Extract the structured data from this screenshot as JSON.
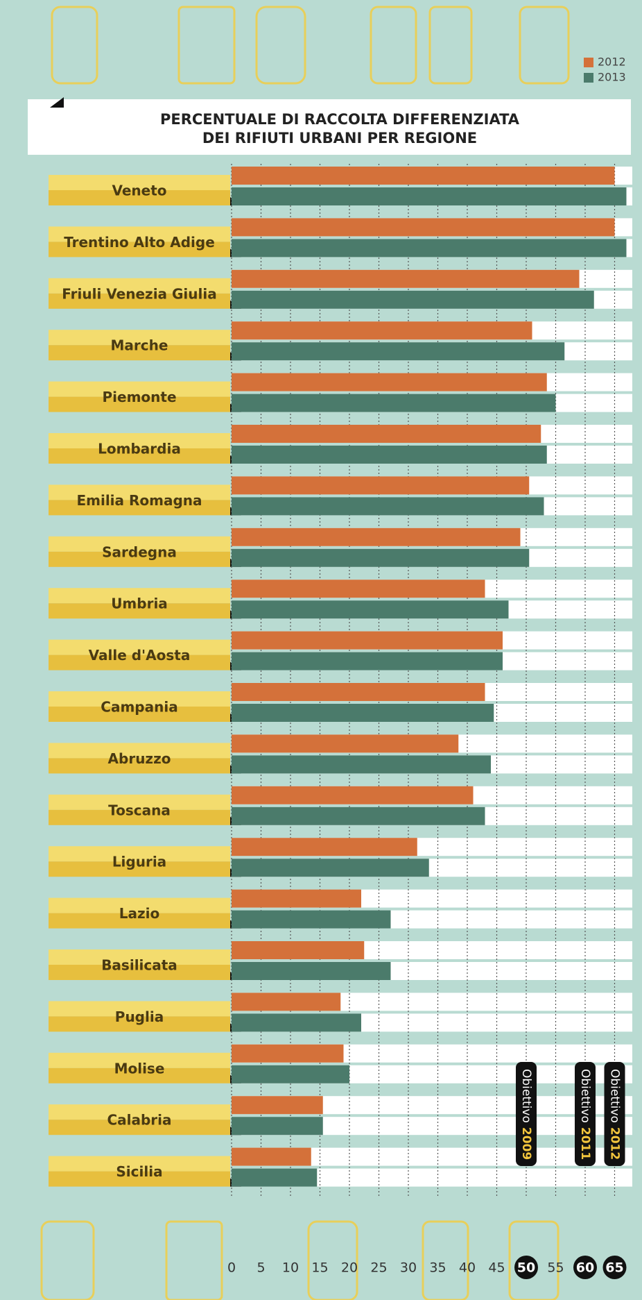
{
  "chart_data": {
    "type": "bar",
    "orientation": "horizontal",
    "title": [
      "PERCENTUALE DI RACCOLTA DIFFERENZIATA",
      "DEI RIFIUTI URBANI PER REGIONE"
    ],
    "categories": [
      "Veneto",
      "Trentino Alto Adige",
      "Friuli Venezia Giulia",
      "Marche",
      "Piemonte",
      "Lombardia",
      "Emilia Romagna",
      "Sardegna",
      "Umbria",
      "Valle d'Aosta",
      "Campania",
      "Abruzzo",
      "Toscana",
      "Liguria",
      "Lazio",
      "Basilicata",
      "Puglia",
      "Molise",
      "Calabria",
      "Sicilia"
    ],
    "series": [
      {
        "name": "2012",
        "color": "#d4713a",
        "values": [
          65,
          65,
          59,
          51,
          53.5,
          52.5,
          50.5,
          49,
          43,
          46,
          43,
          38.5,
          41,
          31.5,
          22,
          22.5,
          18.5,
          19,
          15.5,
          13.5
        ]
      },
      {
        "name": "2013",
        "color": "#4b7b6b",
        "values": [
          67,
          67,
          61.5,
          56.5,
          55,
          53.5,
          53,
          50.5,
          47,
          46,
          44.5,
          44,
          43,
          33.5,
          27,
          27,
          22,
          20,
          15.5,
          14.5
        ]
      }
    ],
    "xlim": [
      0,
      68
    ],
    "xticks": [
      0,
      5,
      10,
      15,
      20,
      25,
      30,
      35,
      40,
      45,
      50,
      55,
      60,
      65
    ],
    "grid": true,
    "legend": "top-right",
    "annotations": [
      {
        "text": "Obiettivo",
        "year": "2009",
        "value": 50
      },
      {
        "text": "Obiettivo",
        "year": "2011",
        "value": 60
      },
      {
        "text": "Obiettivo",
        "year": "2012",
        "value": 65
      }
    ]
  }
}
